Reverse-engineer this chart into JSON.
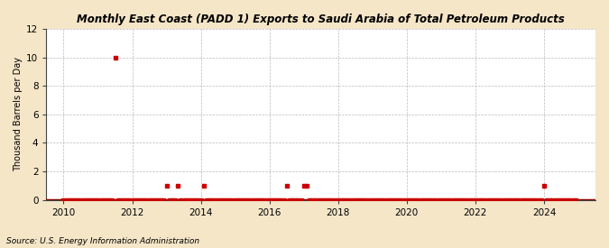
{
  "title": "Monthly East Coast (PADD 1) Exports to Saudi Arabia of Total Petroleum Products",
  "ylabel": "Thousand Barrels per Day",
  "source": "Source: U.S. Energy Information Administration",
  "background_color": "#f5e6c8",
  "plot_bg_color": "#ffffff",
  "marker_color": "#cc0000",
  "baseline_color": "#8b0000",
  "ylim": [
    0,
    12
  ],
  "yticks": [
    0,
    2,
    4,
    6,
    8,
    10,
    12
  ],
  "xlim_start": 2009.5,
  "xlim_end": 2025.5,
  "xticks": [
    2010,
    2012,
    2014,
    2016,
    2018,
    2020,
    2022,
    2024
  ],
  "data_points": [
    {
      "date": 2010.0,
      "value": 0
    },
    {
      "date": 2010.083,
      "value": 0
    },
    {
      "date": 2010.167,
      "value": 0
    },
    {
      "date": 2010.25,
      "value": 0
    },
    {
      "date": 2010.333,
      "value": 0
    },
    {
      "date": 2010.417,
      "value": 0
    },
    {
      "date": 2010.5,
      "value": 0
    },
    {
      "date": 2010.583,
      "value": 0
    },
    {
      "date": 2010.667,
      "value": 0
    },
    {
      "date": 2010.75,
      "value": 0
    },
    {
      "date": 2010.833,
      "value": 0
    },
    {
      "date": 2010.917,
      "value": 0
    },
    {
      "date": 2011.0,
      "value": 0
    },
    {
      "date": 2011.083,
      "value": 0
    },
    {
      "date": 2011.167,
      "value": 0
    },
    {
      "date": 2011.25,
      "value": 0
    },
    {
      "date": 2011.333,
      "value": 0
    },
    {
      "date": 2011.417,
      "value": 0
    },
    {
      "date": 2011.5,
      "value": 10
    },
    {
      "date": 2011.583,
      "value": 0
    },
    {
      "date": 2011.667,
      "value": 0
    },
    {
      "date": 2011.75,
      "value": 0
    },
    {
      "date": 2011.833,
      "value": 0
    },
    {
      "date": 2011.917,
      "value": 0
    },
    {
      "date": 2012.0,
      "value": 0
    },
    {
      "date": 2012.083,
      "value": 0
    },
    {
      "date": 2012.167,
      "value": 0
    },
    {
      "date": 2012.25,
      "value": 0
    },
    {
      "date": 2012.333,
      "value": 0
    },
    {
      "date": 2012.417,
      "value": 0
    },
    {
      "date": 2012.5,
      "value": 0
    },
    {
      "date": 2012.583,
      "value": 0
    },
    {
      "date": 2012.667,
      "value": 0
    },
    {
      "date": 2012.75,
      "value": 0
    },
    {
      "date": 2012.833,
      "value": 0
    },
    {
      "date": 2012.917,
      "value": 0
    },
    {
      "date": 2013.0,
      "value": 1
    },
    {
      "date": 2013.083,
      "value": 0
    },
    {
      "date": 2013.167,
      "value": 0
    },
    {
      "date": 2013.25,
      "value": 0
    },
    {
      "date": 2013.333,
      "value": 1
    },
    {
      "date": 2013.417,
      "value": 0
    },
    {
      "date": 2013.5,
      "value": 0
    },
    {
      "date": 2013.583,
      "value": 0
    },
    {
      "date": 2013.667,
      "value": 0
    },
    {
      "date": 2013.75,
      "value": 0
    },
    {
      "date": 2013.833,
      "value": 0
    },
    {
      "date": 2013.917,
      "value": 0
    },
    {
      "date": 2014.0,
      "value": 0
    },
    {
      "date": 2014.083,
      "value": 1
    },
    {
      "date": 2014.167,
      "value": 0
    },
    {
      "date": 2014.25,
      "value": 0
    },
    {
      "date": 2014.333,
      "value": 0
    },
    {
      "date": 2014.417,
      "value": 0
    },
    {
      "date": 2014.5,
      "value": 0
    },
    {
      "date": 2014.583,
      "value": 0
    },
    {
      "date": 2014.667,
      "value": 0
    },
    {
      "date": 2014.75,
      "value": 0
    },
    {
      "date": 2014.833,
      "value": 0
    },
    {
      "date": 2014.917,
      "value": 0
    },
    {
      "date": 2015.0,
      "value": 0
    },
    {
      "date": 2015.083,
      "value": 0
    },
    {
      "date": 2015.167,
      "value": 0
    },
    {
      "date": 2015.25,
      "value": 0
    },
    {
      "date": 2015.333,
      "value": 0
    },
    {
      "date": 2015.417,
      "value": 0
    },
    {
      "date": 2015.5,
      "value": 0
    },
    {
      "date": 2015.583,
      "value": 0
    },
    {
      "date": 2015.667,
      "value": 0
    },
    {
      "date": 2015.75,
      "value": 0
    },
    {
      "date": 2015.833,
      "value": 0
    },
    {
      "date": 2015.917,
      "value": 0
    },
    {
      "date": 2016.0,
      "value": 0
    },
    {
      "date": 2016.083,
      "value": 0
    },
    {
      "date": 2016.167,
      "value": 0
    },
    {
      "date": 2016.25,
      "value": 0
    },
    {
      "date": 2016.333,
      "value": 0
    },
    {
      "date": 2016.417,
      "value": 0
    },
    {
      "date": 2016.5,
      "value": 1
    },
    {
      "date": 2016.583,
      "value": 0
    },
    {
      "date": 2016.667,
      "value": 0
    },
    {
      "date": 2016.75,
      "value": 0
    },
    {
      "date": 2016.833,
      "value": 0
    },
    {
      "date": 2016.917,
      "value": 0
    },
    {
      "date": 2017.0,
      "value": 1
    },
    {
      "date": 2017.083,
      "value": 1
    },
    {
      "date": 2017.167,
      "value": 0
    },
    {
      "date": 2017.25,
      "value": 0
    },
    {
      "date": 2017.333,
      "value": 0
    },
    {
      "date": 2017.417,
      "value": 0
    },
    {
      "date": 2017.5,
      "value": 0
    },
    {
      "date": 2017.583,
      "value": 0
    },
    {
      "date": 2017.667,
      "value": 0
    },
    {
      "date": 2017.75,
      "value": 0
    },
    {
      "date": 2017.833,
      "value": 0
    },
    {
      "date": 2017.917,
      "value": 0
    },
    {
      "date": 2018.0,
      "value": 0
    },
    {
      "date": 2018.083,
      "value": 0
    },
    {
      "date": 2018.167,
      "value": 0
    },
    {
      "date": 2018.25,
      "value": 0
    },
    {
      "date": 2018.333,
      "value": 0
    },
    {
      "date": 2018.417,
      "value": 0
    },
    {
      "date": 2018.5,
      "value": 0
    },
    {
      "date": 2018.583,
      "value": 0
    },
    {
      "date": 2018.667,
      "value": 0
    },
    {
      "date": 2018.75,
      "value": 0
    },
    {
      "date": 2018.833,
      "value": 0
    },
    {
      "date": 2018.917,
      "value": 0
    },
    {
      "date": 2019.0,
      "value": 0
    },
    {
      "date": 2019.083,
      "value": 0
    },
    {
      "date": 2019.167,
      "value": 0
    },
    {
      "date": 2019.25,
      "value": 0
    },
    {
      "date": 2019.333,
      "value": 0
    },
    {
      "date": 2019.417,
      "value": 0
    },
    {
      "date": 2019.5,
      "value": 0
    },
    {
      "date": 2019.583,
      "value": 0
    },
    {
      "date": 2019.667,
      "value": 0
    },
    {
      "date": 2019.75,
      "value": 0
    },
    {
      "date": 2019.833,
      "value": 0
    },
    {
      "date": 2019.917,
      "value": 0
    },
    {
      "date": 2020.0,
      "value": 0
    },
    {
      "date": 2020.083,
      "value": 0
    },
    {
      "date": 2020.167,
      "value": 0
    },
    {
      "date": 2020.25,
      "value": 0
    },
    {
      "date": 2020.333,
      "value": 0
    },
    {
      "date": 2020.417,
      "value": 0
    },
    {
      "date": 2020.5,
      "value": 0
    },
    {
      "date": 2020.583,
      "value": 0
    },
    {
      "date": 2020.667,
      "value": 0
    },
    {
      "date": 2020.75,
      "value": 0
    },
    {
      "date": 2020.833,
      "value": 0
    },
    {
      "date": 2020.917,
      "value": 0
    },
    {
      "date": 2021.0,
      "value": 0
    },
    {
      "date": 2021.083,
      "value": 0
    },
    {
      "date": 2021.167,
      "value": 0
    },
    {
      "date": 2021.25,
      "value": 0
    },
    {
      "date": 2021.333,
      "value": 0
    },
    {
      "date": 2021.417,
      "value": 0
    },
    {
      "date": 2021.5,
      "value": 0
    },
    {
      "date": 2021.583,
      "value": 0
    },
    {
      "date": 2021.667,
      "value": 0
    },
    {
      "date": 2021.75,
      "value": 0
    },
    {
      "date": 2021.833,
      "value": 0
    },
    {
      "date": 2021.917,
      "value": 0
    },
    {
      "date": 2022.0,
      "value": 0
    },
    {
      "date": 2022.083,
      "value": 0
    },
    {
      "date": 2022.167,
      "value": 0
    },
    {
      "date": 2022.25,
      "value": 0
    },
    {
      "date": 2022.333,
      "value": 0
    },
    {
      "date": 2022.417,
      "value": 0
    },
    {
      "date": 2022.5,
      "value": 0
    },
    {
      "date": 2022.583,
      "value": 0
    },
    {
      "date": 2022.667,
      "value": 0
    },
    {
      "date": 2022.75,
      "value": 0
    },
    {
      "date": 2022.833,
      "value": 0
    },
    {
      "date": 2022.917,
      "value": 0
    },
    {
      "date": 2023.0,
      "value": 0
    },
    {
      "date": 2023.083,
      "value": 0
    },
    {
      "date": 2023.167,
      "value": 0
    },
    {
      "date": 2023.25,
      "value": 0
    },
    {
      "date": 2023.333,
      "value": 0
    },
    {
      "date": 2023.417,
      "value": 0
    },
    {
      "date": 2023.5,
      "value": 0
    },
    {
      "date": 2023.583,
      "value": 0
    },
    {
      "date": 2023.667,
      "value": 0
    },
    {
      "date": 2023.75,
      "value": 0
    },
    {
      "date": 2023.833,
      "value": 0
    },
    {
      "date": 2023.917,
      "value": 0
    },
    {
      "date": 2024.0,
      "value": 1
    },
    {
      "date": 2024.083,
      "value": 0
    },
    {
      "date": 2024.167,
      "value": 0
    },
    {
      "date": 2024.25,
      "value": 0
    },
    {
      "date": 2024.333,
      "value": 0
    },
    {
      "date": 2024.417,
      "value": 0
    },
    {
      "date": 2024.5,
      "value": 0
    },
    {
      "date": 2024.583,
      "value": 0
    },
    {
      "date": 2024.667,
      "value": 0
    },
    {
      "date": 2024.75,
      "value": 0
    },
    {
      "date": 2024.833,
      "value": 0
    },
    {
      "date": 2024.917,
      "value": 0
    }
  ]
}
